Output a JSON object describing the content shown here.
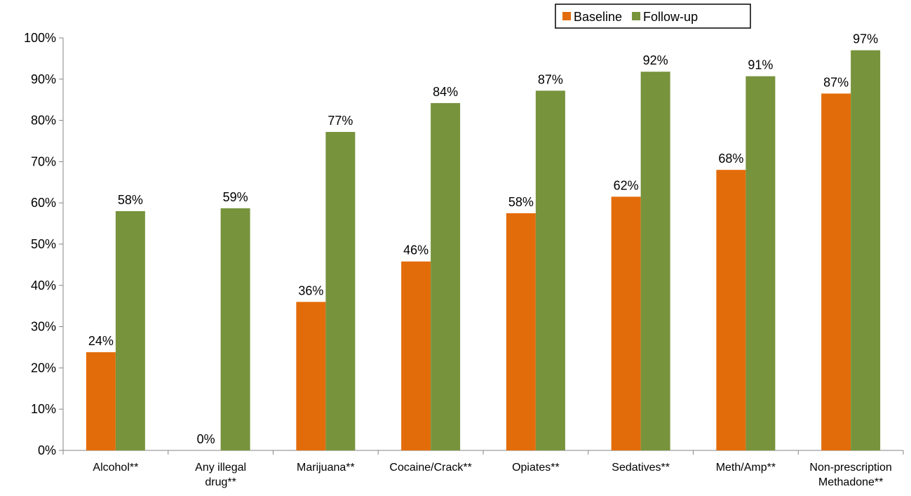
{
  "chart_data": {
    "type": "bar",
    "categories": [
      [
        "Alcohol**"
      ],
      [
        "Any illegal",
        "drug**"
      ],
      [
        "Marijuana**"
      ],
      [
        "Cocaine/Crack**"
      ],
      [
        "Opiates**"
      ],
      [
        "Sedatives**"
      ],
      [
        "Meth/Amp**"
      ],
      [
        "Non-prescription",
        "Methadone**"
      ]
    ],
    "series": [
      {
        "name": "Baseline",
        "color": "#E36C0A",
        "values": [
          23.8,
          0,
          36.0,
          45.8,
          57.5,
          61.5,
          68.0,
          86.5
        ],
        "labels": [
          "24%",
          "0%",
          "36%",
          "46%",
          "58%",
          "62%",
          "68%",
          "87%"
        ]
      },
      {
        "name": "Follow-up",
        "color": "#77933C",
        "values": [
          58.0,
          58.7,
          77.2,
          84.2,
          87.2,
          91.8,
          90.7,
          97.0
        ],
        "labels": [
          "58%",
          "59%",
          "77%",
          "84%",
          "87%",
          "92%",
          "91%",
          "97%"
        ]
      }
    ],
    "y_ticks": [
      "0%",
      "10%",
      "20%",
      "30%",
      "40%",
      "50%",
      "60%",
      "70%",
      "80%",
      "90%",
      "100%"
    ],
    "ylim": [
      0,
      100
    ],
    "title": "",
    "xlabel": "",
    "ylabel": "",
    "grid": false,
    "legend_position": "top-right"
  }
}
